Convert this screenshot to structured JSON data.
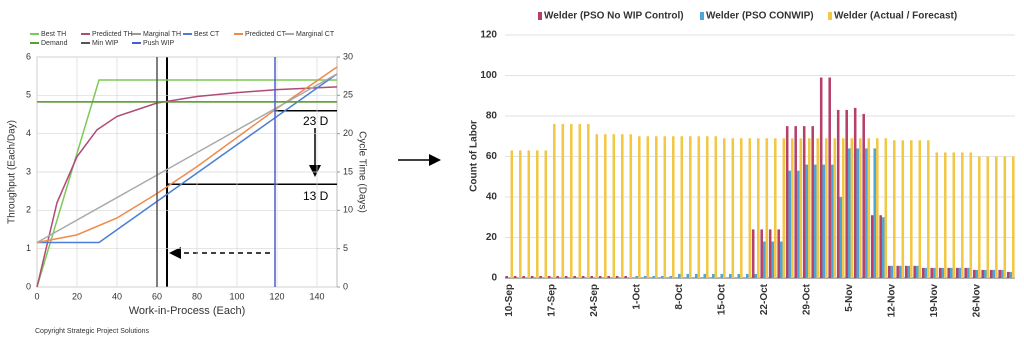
{
  "chart_data": [
    {
      "type": "line",
      "xlabel": "Work-in-Process (Each)",
      "ylabel": "Throughput (Each/Day)",
      "y2label": "Cycle Time (Days)",
      "xlim": [
        0,
        150
      ],
      "xticks": [
        0,
        20,
        40,
        60,
        80,
        100,
        120,
        140
      ],
      "ylim": [
        0,
        6
      ],
      "yticks": [
        0,
        1,
        2,
        3,
        4,
        5,
        6
      ],
      "y2lim": [
        0,
        30
      ],
      "y2ticks": [
        0,
        5,
        10,
        15,
        20,
        25,
        30
      ],
      "grid": true,
      "annotations": [
        "23 D",
        "13 D"
      ],
      "series": [
        {
          "name": "Best TH",
          "color": "#7dc955",
          "x": [
            0,
            31,
            150
          ],
          "values": [
            0,
            5.4,
            5.4
          ]
        },
        {
          "name": "Predicted TH",
          "color": "#b04a78",
          "x": [
            0,
            10,
            20,
            30,
            40,
            60,
            80,
            100,
            120,
            150
          ],
          "values": [
            0,
            2.2,
            3.4,
            4.1,
            4.45,
            4.8,
            4.97,
            5.07,
            5.15,
            5.22
          ]
        },
        {
          "name": "Marginal TH",
          "color": "#9a9a9a",
          "x": [
            0,
            150
          ],
          "values": [
            4.83,
            4.83
          ]
        },
        {
          "name": "Best CT",
          "color": "#4a7fd4",
          "axis": "y2",
          "x": [
            0,
            31,
            150
          ],
          "values": [
            5.8,
            5.8,
            27.8
          ]
        },
        {
          "name": "Predicted CT",
          "color": "#f08a4b",
          "axis": "y2",
          "x": [
            0,
            20,
            40,
            60,
            80,
            100,
            120,
            150
          ],
          "values": [
            5.8,
            6.8,
            9,
            12.2,
            15.7,
            19.5,
            23.3,
            28.7
          ]
        },
        {
          "name": "Marginal CT",
          "color": "#aaaaaa",
          "axis": "y2",
          "x": [
            0,
            150
          ],
          "values": [
            5.8,
            27.8
          ]
        },
        {
          "name": "Demand",
          "color": "#5a9e32",
          "x": [
            0,
            150
          ],
          "values": [
            4.83,
            4.83
          ]
        },
        {
          "name": "Min WIP",
          "color": "#555555",
          "x": [
            60,
            60
          ],
          "values": [
            0,
            6
          ]
        },
        {
          "name": "Push WIP",
          "color": "#4b5fd0",
          "x": [
            119,
            119
          ],
          "values": [
            0,
            6
          ]
        }
      ]
    },
    {
      "type": "bar",
      "ylabel": "Count of Labor",
      "ylim": [
        0,
        120
      ],
      "yticks": [
        0,
        20,
        40,
        60,
        80,
        100,
        120
      ],
      "categories": [
        "10-Sep",
        null,
        null,
        null,
        null,
        "17-Sep",
        null,
        null,
        null,
        null,
        "24-Sep",
        null,
        null,
        null,
        null,
        "1-Oct",
        null,
        null,
        null,
        null,
        "8-Oct",
        null,
        null,
        null,
        null,
        "15-Oct",
        null,
        null,
        null,
        null,
        "22-Oct",
        null,
        null,
        null,
        null,
        "29-Oct",
        null,
        null,
        null,
        null,
        "5-Nov",
        null,
        null,
        null,
        null,
        "12-Nov",
        null,
        null,
        null,
        null,
        "19-Nov",
        null,
        null,
        null,
        null,
        "26-Nov",
        null,
        null,
        null,
        null
      ],
      "series": [
        {
          "name": "Welder (PSO No WIP Control)",
          "color": "#b5406a",
          "values": [
            1,
            1,
            1,
            1,
            1,
            1,
            1,
            1,
            1,
            1,
            1,
            1,
            1,
            1,
            1,
            0,
            0,
            0,
            0,
            0,
            0,
            0,
            0,
            0,
            0,
            0,
            0,
            0,
            0,
            24,
            24,
            24,
            24,
            75,
            75,
            75,
            75,
            99,
            99,
            83,
            83,
            84,
            81,
            31,
            31,
            6,
            6,
            6,
            6,
            5,
            5,
            5,
            5,
            5,
            5,
            4,
            4,
            4,
            4,
            3
          ]
        },
        {
          "name": "Welder (PSO CONWIP)",
          "color": "#4da6d6",
          "values": [
            0,
            0,
            0,
            0,
            0,
            0,
            0,
            0,
            0,
            0,
            0,
            0,
            0,
            0,
            0,
            1,
            1,
            1,
            1,
            1,
            2,
            2,
            2,
            2,
            2,
            2,
            2,
            2,
            2,
            2,
            18,
            18,
            18,
            53,
            53,
            56,
            56,
            56,
            56,
            40,
            64,
            64,
            64,
            64,
            30,
            6,
            6,
            6,
            6,
            5,
            5,
            5,
            5,
            5,
            5,
            4,
            4,
            4,
            4,
            3
          ]
        },
        {
          "name": "Welder (Actual / Forecast)",
          "color": "#f2c744",
          "values": [
            63,
            63,
            63,
            63,
            63,
            76,
            76,
            76,
            76,
            76,
            71,
            71,
            71,
            71,
            71,
            70,
            70,
            70,
            70,
            70,
            70,
            70,
            70,
            70,
            70,
            69,
            69,
            69,
            69,
            69,
            69,
            69,
            69,
            69,
            69,
            69,
            69,
            69,
            69,
            69,
            69,
            69,
            69,
            69,
            69,
            68,
            68,
            68,
            68,
            68,
            62,
            62,
            62,
            62,
            62,
            60,
            60,
            60,
            60,
            60
          ]
        }
      ]
    }
  ],
  "copyright": "Copyright Strategic Project Solutions"
}
